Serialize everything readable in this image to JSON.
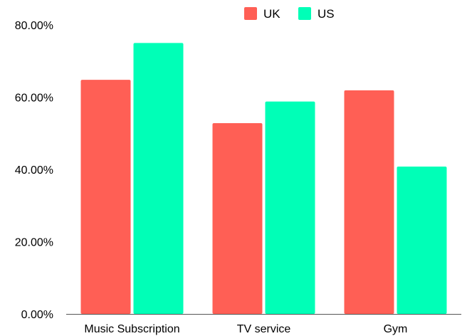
{
  "chart_data": {
    "type": "bar",
    "categories": [
      "Music Subscription",
      "TV service",
      "Gym"
    ],
    "series": [
      {
        "name": "UK",
        "values": [
          64.8,
          52.8,
          61.9
        ],
        "color": "#ff5f55"
      },
      {
        "name": "US",
        "values": [
          75.0,
          58.8,
          40.8
        ],
        "color": "#00ffb7"
      }
    ],
    "ylim": [
      0,
      80
    ],
    "yticks": [
      0,
      20,
      40,
      60,
      80
    ],
    "ytick_labels": [
      "0.00%",
      "20.00%",
      "40.00%",
      "60.00%",
      "80.00%"
    ],
    "legend_position": "top-center",
    "grid": false,
    "axis_color": "#555555"
  }
}
